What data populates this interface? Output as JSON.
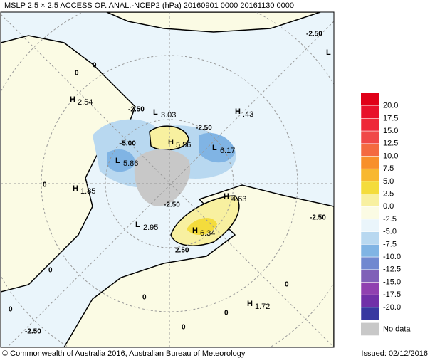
{
  "header": {
    "title": "MSLP  2.5 × 2.5 ACCESS OP. ANAL.-NCEP2 (hPa)  20160901 0000 20161130 0000"
  },
  "map": {
    "centers": [
      {
        "kind": "H",
        "value": "2.54"
      },
      {
        "kind": "H",
        "value": "1.85"
      },
      {
        "kind": "L",
        "value": "3.03"
      },
      {
        "kind": "H",
        "value": "5.56"
      },
      {
        "kind": "L",
        "value": "6.17"
      },
      {
        "kind": "H",
        "value": ".43"
      },
      {
        "kind": "L",
        "value": "5.86"
      },
      {
        "kind": "L",
        "value": "2.95"
      },
      {
        "kind": "H",
        "value": "4.63"
      },
      {
        "kind": "H",
        "value": "6.34"
      },
      {
        "kind": "H",
        "value": "1.72"
      },
      {
        "kind": "L",
        "value": ""
      }
    ],
    "contour_labels": [
      "-2.50",
      "-2.50",
      "-2.50",
      "-5.00",
      "-2.50",
      "-2.50",
      "2.50",
      "-2.50",
      "0",
      "0",
      "0",
      "0",
      "0",
      "0",
      "0",
      "0",
      "0"
    ]
  },
  "legend": {
    "items": [
      {
        "label": "20.0",
        "color": "#e8102a"
      },
      {
        "label": "17.5",
        "color": "#ee2838"
      },
      {
        "label": "15.0",
        "color": "#f04848"
      },
      {
        "label": "12.5",
        "color": "#f46a40"
      },
      {
        "label": "10.0",
        "color": "#f8902a"
      },
      {
        "label": "7.5",
        "color": "#f8b830"
      },
      {
        "label": "5.0",
        "color": "#f4dc3c"
      },
      {
        "label": "2.5",
        "color": "#f8f0a0"
      },
      {
        "label": "0.0",
        "color": "#fbfbe4"
      },
      {
        "label": "-2.5",
        "color": "#eaf5fb"
      },
      {
        "label": "-5.0",
        "color": "#b8d8f0"
      },
      {
        "label": "-7.5",
        "color": "#80b4e4"
      },
      {
        "label": "-10.0",
        "color": "#7088d0"
      },
      {
        "label": "-12.5",
        "color": "#8060b8"
      },
      {
        "label": "-15.0",
        "color": "#9040b0"
      },
      {
        "label": "-17.5",
        "color": "#7030a8"
      },
      {
        "label": "-20.0",
        "color": "#3838a0"
      }
    ],
    "top_color": "#e00018",
    "no_data": {
      "label": "No data",
      "color": "#c8c8c8"
    }
  },
  "footer": {
    "copyright": "© Commonwealth of Australia 2016, Australian Bureau of Meteorology",
    "issued": "Issued: 02/12/2016"
  }
}
